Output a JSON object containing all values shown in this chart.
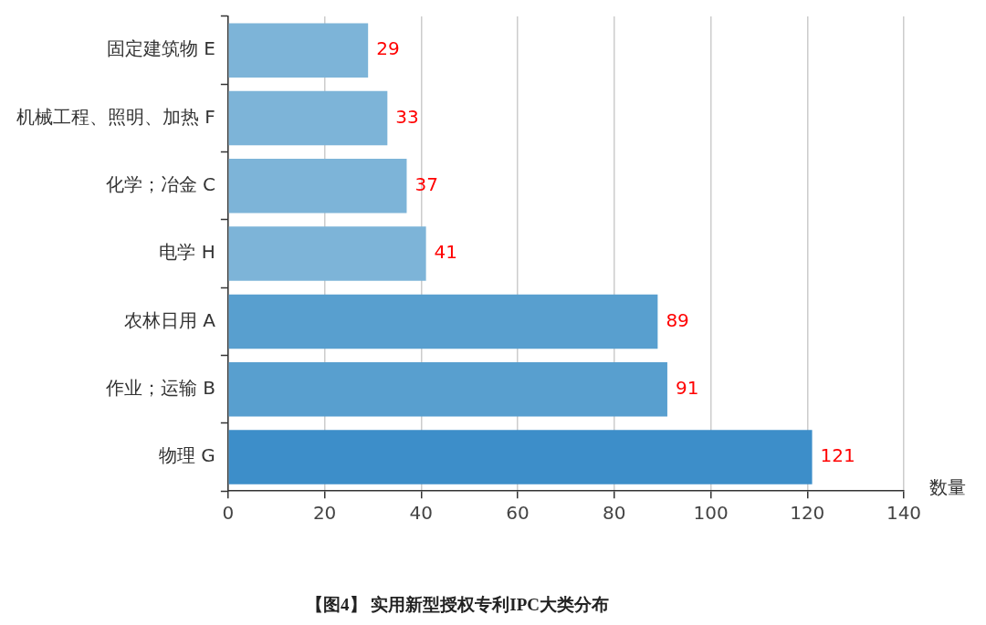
{
  "chart_data": {
    "type": "bar",
    "orientation": "horizontal",
    "title": "【图4】 实用新型授权专利IPC大类分布",
    "xlabel": "数量",
    "categories": [
      "固定建筑物 E",
      "机械工程、照明、加热 F",
      "化学；冶金 C",
      "电学 H",
      "农林日用 A",
      "作业；运输 B",
      "物理 G"
    ],
    "values": [
      29,
      33,
      37,
      41,
      89,
      91,
      121
    ],
    "colors": [
      "#7db4d8",
      "#7db4d8",
      "#7db4d8",
      "#7db4d8",
      "#589fcf",
      "#589fcf",
      "#3d8ec9"
    ],
    "xlim": [
      0,
      140
    ],
    "xticks": [
      0,
      20,
      40,
      60,
      80,
      100,
      120,
      140
    ],
    "grid": "x",
    "data_labels": true,
    "legend": false
  }
}
